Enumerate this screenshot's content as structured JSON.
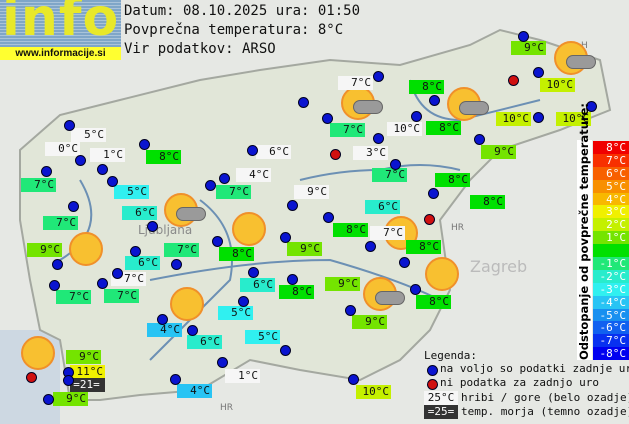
{
  "logo": {
    "text": "info",
    "url": "www.informacije.si"
  },
  "header": {
    "date_line": "Datum: 08.10.2025 ura: 01:50",
    "avg_line": "Povprečna temperatura: 8°C",
    "source_line": "Vir podatkov: ARSO"
  },
  "colors": {
    "p3": "#f0f000",
    "p2": "#c4f000",
    "p1": "#74e400",
    "z0": "#00e000",
    "m1": "#20e878",
    "m2": "#28eccc",
    "m3": "#30f0f0",
    "m4": "#28c4f4",
    "white": "#f6f6f6",
    "sea": "#333333",
    "ok_dot": "#0a14d0",
    "missing_dot": "#d01010"
  },
  "labels": [
    {
      "t": "9°C",
      "c": "p1"
    },
    {
      "t": "10°C",
      "c": "p2"
    },
    {
      "t": "10°C",
      "c": "p2"
    },
    {
      "t": "10°C",
      "c": "p2"
    },
    {
      "t": "7°C",
      "c": "white"
    },
    {
      "t": "8°C",
      "c": "z0"
    },
    {
      "t": "7°C",
      "c": "m1"
    },
    {
      "t": "10°C",
      "c": "white"
    },
    {
      "t": "8°C",
      "c": "z0"
    },
    {
      "t": "3°C",
      "c": "white"
    },
    {
      "t": "9°C",
      "c": "p1"
    },
    {
      "t": "7°C",
      "c": "m1"
    },
    {
      "t": "8°C",
      "c": "z0"
    },
    {
      "t": "5°C",
      "c": "white"
    },
    {
      "t": "0°C",
      "c": "white"
    },
    {
      "t": "1°C",
      "c": "white"
    },
    {
      "t": "8°C",
      "c": "z0"
    },
    {
      "t": "6°C",
      "c": "white"
    },
    {
      "t": "7°C",
      "c": "m1"
    },
    {
      "t": "5°C",
      "c": "m3"
    },
    {
      "t": "4°C",
      "c": "white"
    },
    {
      "t": "7°C",
      "c": "m1"
    },
    {
      "t": "9°C",
      "c": "white"
    },
    {
      "t": "7°C",
      "c": "m1"
    },
    {
      "t": "6°C",
      "c": "m2"
    },
    {
      "t": "9°C",
      "c": "p1"
    },
    {
      "t": "6°C",
      "c": "m2"
    },
    {
      "t": "7°C",
      "c": "m1"
    },
    {
      "t": "8°C",
      "c": "z0"
    },
    {
      "t": "9°C",
      "c": "p1"
    },
    {
      "t": "6°C",
      "c": "m2"
    },
    {
      "t": "8°C",
      "c": "z0"
    },
    {
      "t": "7°C",
      "c": "white"
    },
    {
      "t": "8°C",
      "c": "z0"
    },
    {
      "t": "7°C",
      "c": "white"
    },
    {
      "t": "7°C",
      "c": "m1"
    },
    {
      "t": "7°C",
      "c": "m1"
    },
    {
      "t": "6°C",
      "c": "m2"
    },
    {
      "t": "8°C",
      "c": "z0"
    },
    {
      "t": "9°C",
      "c": "p1"
    },
    {
      "t": "8°C",
      "c": "z0"
    },
    {
      "t": "5°C",
      "c": "m3"
    },
    {
      "t": "9°C",
      "c": "p1"
    },
    {
      "t": "4°C",
      "c": "m4"
    },
    {
      "t": "6°C",
      "c": "m2"
    },
    {
      "t": "5°C",
      "c": "m3"
    },
    {
      "t": "9°C",
      "c": "p1"
    },
    {
      "t": "11°C",
      "c": "p3"
    },
    {
      "t": "=21=",
      "c": "sea"
    },
    {
      "t": "9°C",
      "c": "p1"
    },
    {
      "t": "1°C",
      "c": "white"
    },
    {
      "t": "4°C",
      "c": "m4"
    },
    {
      "t": "10°C",
      "c": "p2"
    },
    {
      "t": "8°C",
      "c": "z0"
    }
  ],
  "stations_missing_count_shown": 4,
  "scale": {
    "title": "Odstopanje od povprečne temperature:",
    "rows": [
      {
        "t": "8°C",
        "bg": "#f00000"
      },
      {
        "t": "7°C",
        "bg": "#f83000"
      },
      {
        "t": "6°C",
        "bg": "#f86000"
      },
      {
        "t": "5°C",
        "bg": "#f89000"
      },
      {
        "t": "4°C",
        "bg": "#f8b800"
      },
      {
        "t": "3°C",
        "bg": "#f0f000"
      },
      {
        "t": "2°C",
        "bg": "#c4f000"
      },
      {
        "t": "1°C",
        "bg": "#74e400"
      },
      {
        "t": "",
        "bg": "#00e000"
      },
      {
        "t": "-1°C",
        "bg": "#20e878"
      },
      {
        "t": "-2°C",
        "bg": "#28eccc"
      },
      {
        "t": "-3°C",
        "bg": "#30f0f0"
      },
      {
        "t": "-4°C",
        "bg": "#28c4f4"
      },
      {
        "t": "-5°C",
        "bg": "#1890f0"
      },
      {
        "t": "-6°C",
        "bg": "#1060f0"
      },
      {
        "t": "-7°C",
        "bg": "#0830f0"
      },
      {
        "t": "-8°C",
        "bg": "#0000f0"
      }
    ]
  },
  "legend": {
    "title": "Legenda:",
    "ok": "na voljo so podatki zadnje ure",
    "missing": "ni podatka za zadnjo uro",
    "mountain_sample": "25°C",
    "mountain": "hribi / gore (belo ozadje)",
    "sea_sample": "=25=",
    "sea": "temp. morja (temno ozadje)"
  },
  "map_text": {
    "capital": "Ljubljana",
    "city": "Zagreb",
    "country_hr": "HR",
    "country_h": "H"
  }
}
